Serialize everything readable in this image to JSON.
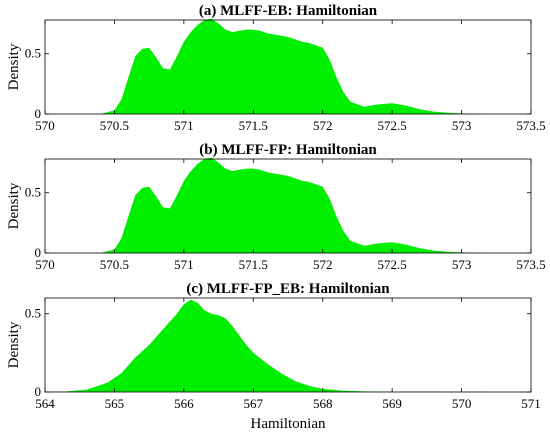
{
  "colors": {
    "fill": "#00ee00",
    "axis": "#000000",
    "background": "#ffffff"
  },
  "chart_data": [
    {
      "type": "area",
      "title": "(a) MLFF-EB: Hamiltonian",
      "xlabel": "",
      "ylabel": "Density",
      "xlim": [
        570,
        573.5
      ],
      "ylim": [
        0,
        0.78
      ],
      "xticks": [
        "570",
        "570.5",
        "571",
        "571.5",
        "572",
        "572.5",
        "573",
        "573.5"
      ],
      "yticks": [
        "0",
        "0.5"
      ],
      "grid": false,
      "x": [
        570.4,
        570.5,
        570.55,
        570.6,
        570.65,
        570.7,
        570.75,
        570.8,
        570.85,
        570.9,
        570.95,
        571.0,
        571.05,
        571.1,
        571.15,
        571.2,
        571.25,
        571.3,
        571.35,
        571.4,
        571.45,
        571.5,
        571.55,
        571.6,
        571.65,
        571.7,
        571.75,
        571.8,
        571.85,
        571.9,
        571.95,
        572.0,
        572.05,
        572.1,
        572.15,
        572.2,
        572.3,
        572.4,
        572.5,
        572.6,
        572.7,
        572.8,
        572.9,
        573.0,
        573.2
      ],
      "y": [
        0.0,
        0.03,
        0.12,
        0.3,
        0.48,
        0.54,
        0.55,
        0.47,
        0.38,
        0.37,
        0.48,
        0.6,
        0.68,
        0.74,
        0.78,
        0.79,
        0.75,
        0.7,
        0.68,
        0.69,
        0.7,
        0.7,
        0.69,
        0.67,
        0.66,
        0.65,
        0.64,
        0.62,
        0.6,
        0.59,
        0.57,
        0.55,
        0.45,
        0.3,
        0.18,
        0.1,
        0.06,
        0.08,
        0.09,
        0.07,
        0.04,
        0.02,
        0.01,
        0.005,
        0.0
      ]
    },
    {
      "type": "area",
      "title": "(b)  MLFF-FP: Hamiltonian",
      "xlabel": "",
      "ylabel": "Density",
      "xlim": [
        570,
        573.5
      ],
      "ylim": [
        0,
        0.78
      ],
      "xticks": [
        "570",
        "570.5",
        "571",
        "571.5",
        "572",
        "572.5",
        "573",
        "573.5"
      ],
      "yticks": [
        "0",
        "0.5"
      ],
      "grid": false,
      "x": [
        570.4,
        570.5,
        570.55,
        570.6,
        570.65,
        570.7,
        570.75,
        570.8,
        570.85,
        570.9,
        570.95,
        571.0,
        571.05,
        571.1,
        571.15,
        571.2,
        571.25,
        571.3,
        571.35,
        571.4,
        571.45,
        571.5,
        571.55,
        571.6,
        571.65,
        571.7,
        571.75,
        571.8,
        571.85,
        571.9,
        571.95,
        572.0,
        572.05,
        572.1,
        572.15,
        572.2,
        572.3,
        572.4,
        572.5,
        572.6,
        572.7,
        572.8,
        572.9,
        573.0,
        573.2
      ],
      "y": [
        0.0,
        0.03,
        0.12,
        0.3,
        0.48,
        0.54,
        0.55,
        0.47,
        0.38,
        0.37,
        0.48,
        0.6,
        0.68,
        0.74,
        0.78,
        0.79,
        0.75,
        0.7,
        0.68,
        0.69,
        0.7,
        0.7,
        0.69,
        0.67,
        0.66,
        0.65,
        0.64,
        0.62,
        0.6,
        0.59,
        0.57,
        0.55,
        0.45,
        0.3,
        0.18,
        0.1,
        0.06,
        0.08,
        0.09,
        0.07,
        0.04,
        0.02,
        0.01,
        0.005,
        0.0
      ]
    },
    {
      "type": "area",
      "title": "(c) MLFF-FP_EB: Hamiltonian",
      "xlabel": "Hamiltonian",
      "ylabel": "Density",
      "xlim": [
        564,
        571
      ],
      "ylim": [
        0,
        0.6
      ],
      "xticks": [
        "564",
        "565",
        "566",
        "567",
        "568",
        "569",
        "570",
        "571"
      ],
      "yticks": [
        "0",
        "0.5"
      ],
      "grid": false,
      "x": [
        564.0,
        564.3,
        564.6,
        564.9,
        565.1,
        565.3,
        565.5,
        565.7,
        565.9,
        566.0,
        566.1,
        566.2,
        566.3,
        566.4,
        566.5,
        566.6,
        566.7,
        566.8,
        566.9,
        567.0,
        567.2,
        567.4,
        567.6,
        567.8,
        568.0,
        568.3,
        568.6,
        569.0,
        569.5,
        570.0,
        570.6
      ],
      "y": [
        0.0,
        0.003,
        0.015,
        0.06,
        0.12,
        0.22,
        0.3,
        0.4,
        0.5,
        0.56,
        0.59,
        0.57,
        0.52,
        0.5,
        0.49,
        0.47,
        0.42,
        0.36,
        0.3,
        0.25,
        0.18,
        0.12,
        0.07,
        0.04,
        0.02,
        0.008,
        0.004,
        0.002,
        0.001,
        0.0005,
        0.0
      ]
    }
  ]
}
